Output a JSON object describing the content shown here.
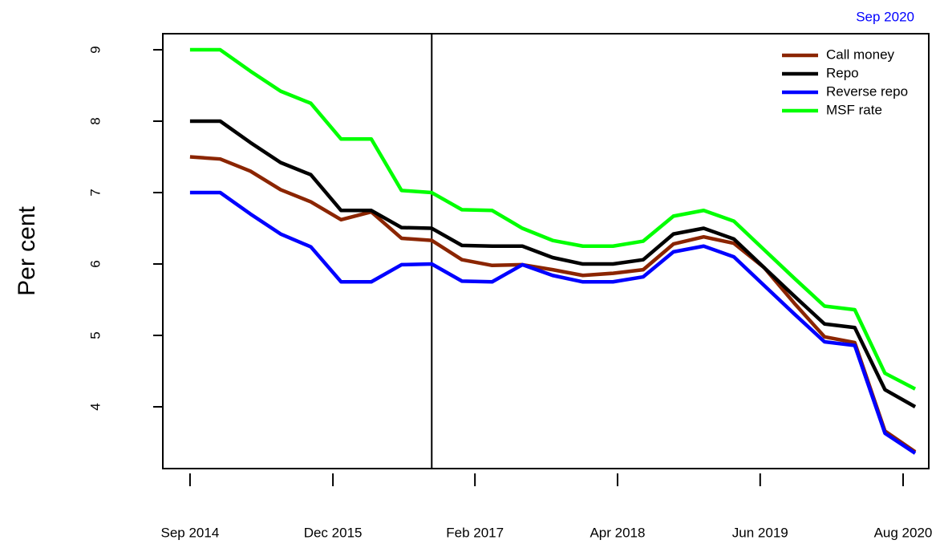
{
  "chart_data": {
    "type": "line",
    "annotation": "Sep 2020",
    "ylabel": "Per cent",
    "x": [
      0,
      1,
      2,
      3,
      4,
      5,
      6,
      7,
      8,
      9,
      10,
      11,
      12,
      13,
      14,
      15,
      16,
      17,
      18,
      19,
      20,
      21,
      22,
      23,
      24
    ],
    "xlim": [
      -0.9,
      24.45
    ],
    "xticks": [
      {
        "value": 0,
        "label": "Sep 2014"
      },
      {
        "value": 4.73,
        "label": "Dec 2015"
      },
      {
        "value": 9.43,
        "label": "Feb 2017"
      },
      {
        "value": 14.15,
        "label": "Apr 2018"
      },
      {
        "value": 18.87,
        "label": "Jun 2019"
      },
      {
        "value": 23.6,
        "label": "Aug 2020"
      }
    ],
    "vline": 8,
    "ylim": [
      3.135,
      9.225
    ],
    "yticks": [
      4,
      5,
      6,
      7,
      8,
      9
    ],
    "legend": "top-right",
    "series": [
      {
        "name": "Call money",
        "color": "#8b2500",
        "values": [
          7.5,
          7.47,
          7.3,
          7.04,
          6.87,
          6.62,
          6.73,
          6.36,
          6.33,
          6.06,
          5.98,
          5.99,
          5.92,
          5.84,
          5.87,
          5.92,
          6.28,
          6.38,
          6.29,
          5.95,
          5.45,
          4.98,
          4.9,
          3.66,
          3.37
        ]
      },
      {
        "name": "Repo",
        "color": "#000000",
        "values": [
          8,
          8,
          7.7,
          7.42,
          7.25,
          6.75,
          6.75,
          6.51,
          6.5,
          6.26,
          6.25,
          6.25,
          6.09,
          6.0,
          6.0,
          6.06,
          6.42,
          6.5,
          6.35,
          5.95,
          5.55,
          5.16,
          5.11,
          4.24,
          4.0
        ]
      },
      {
        "name": "Reverse repo",
        "color": "#0000ff",
        "values": [
          7,
          7,
          6.7,
          6.42,
          6.24,
          5.75,
          5.75,
          5.99,
          6.0,
          5.76,
          5.75,
          5.99,
          5.84,
          5.75,
          5.75,
          5.82,
          6.17,
          6.25,
          6.1,
          5.7,
          5.3,
          4.91,
          4.86,
          3.63,
          3.35
        ]
      },
      {
        "name": "MSF rate",
        "color": "#00ff00",
        "values": [
          9,
          9,
          8.7,
          8.42,
          8.25,
          7.75,
          7.75,
          7.03,
          7.0,
          6.76,
          6.75,
          6.5,
          6.33,
          6.25,
          6.25,
          6.32,
          6.67,
          6.75,
          6.6,
          6.2,
          5.8,
          5.41,
          5.36,
          4.47,
          4.25
        ]
      }
    ]
  }
}
